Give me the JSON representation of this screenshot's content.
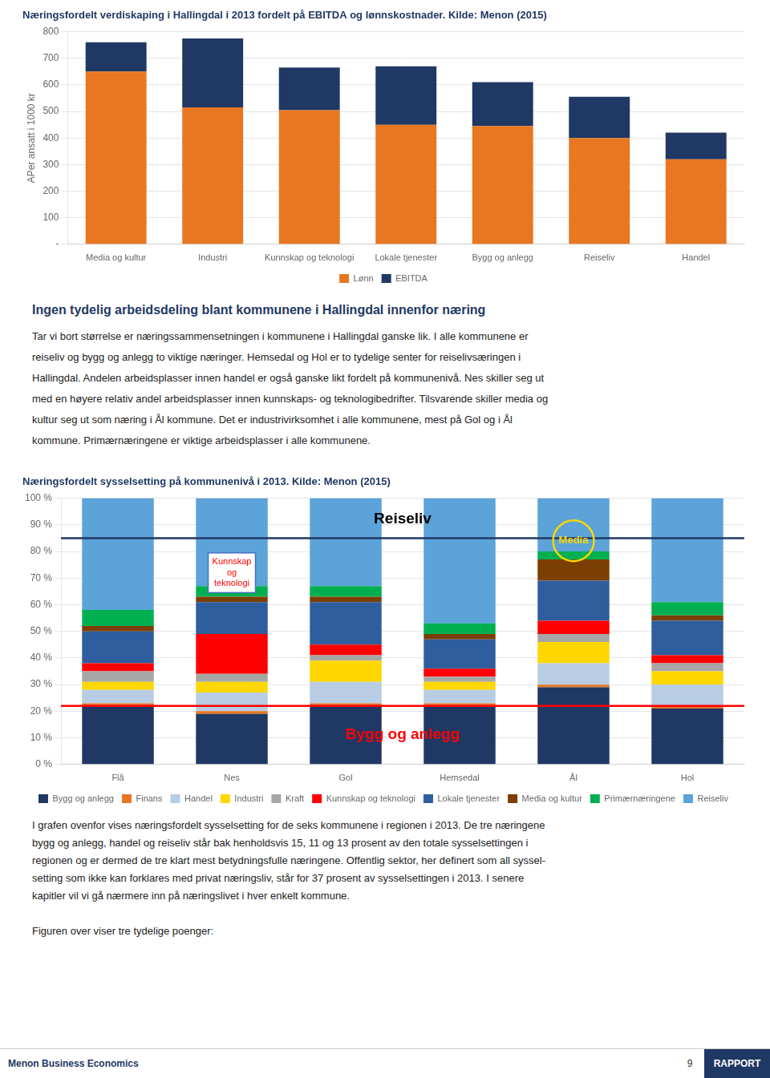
{
  "heading": "Ingen tydelig arbeidsdeling blant kommunene i Hallingdal innenfor næring",
  "paragraphs": [
    "Tar vi bort størrelse er næringssammensetningen i kommunene i Hallingdal ganske lik. I alle kommunene er",
    "reiseliv og bygg og anlegg to viktige næringer. Hemsedal og Hol er to tydelige senter for reiselivsæringen i",
    "Hallingdal. Andelen arbeidsplasser innen handel er også ganske likt fordelt på kommunenivå. Nes skiller seg ut",
    "med en høyere relativ andel arbeidsplasser innen kunnskaps- og teknologibedrifter. Tilsvarende skiller media og",
    "kultur seg ut som næring i Ål kommune. Det er industrivirksomhet i alle kommunene, mest på Gol og i Ål",
    "kommune. Primærnæringene er viktige arbeidsplasser i alle kommunene."
  ],
  "post_paragraphs": [
    "I grafen ovenfor vises næringsfordelt sysselsetting for de seks kommunene i regionen i 2013. De tre næringene",
    "bygg og anlegg, handel og reiseliv står bak henholdsvis 15, 11 og 13 prosent av den totale sysselsettingen i",
    "regionen og er dermed de tre klart mest betydningsfulle næringene. Offentlig sektor, her definert som all syssel-",
    "setting som ikke kan forklares med privat næringsliv, står for 37 prosent av sysselsettingen i 2013. I senere",
    "kapitler vil vi gå nærmere inn på næringslivet i hver enkelt kommune."
  ],
  "post_paragraph2": "Figuren over viser tre tydelige poenger:",
  "footer": {
    "left": "Menon Business Economics",
    "page": "9",
    "right": "RAPPORT"
  },
  "chart_data": [
    {
      "type": "bar",
      "stacked": true,
      "title": "Næringsfordelt verdiskaping i Hallingdal i 2013 fordelt på EBITDA og lønnskostnader. Kilde: Menon (2015)",
      "ylabel": "APer ansatt i 1000 kr",
      "categories": [
        "Media og kultur",
        "Industri",
        "Kunnskap og teknologi",
        "Lokale tjenester",
        "Bygg og anlegg",
        "Reiseliv",
        "Handel"
      ],
      "series": [
        {
          "name": "Lønn",
          "color": "#E87722",
          "values": [
            650,
            515,
            505,
            450,
            445,
            400,
            320
          ]
        },
        {
          "name": "EBITDA",
          "color": "#1F3864",
          "values": [
            110,
            260,
            160,
            220,
            165,
            155,
            100
          ]
        }
      ],
      "ylim": [
        0,
        800
      ],
      "yticks": [
        {
          "value": 0,
          "label": "-"
        },
        100,
        200,
        300,
        400,
        500,
        600,
        700,
        800
      ],
      "grid": true,
      "legend": "bottom"
    },
    {
      "type": "bar",
      "stacked": true,
      "title": "Næringsfordelt sysselsetting på kommunenivå i 2013. Kilde: Menon (2015)",
      "categories": [
        "Flå",
        "Nes",
        "Gol",
        "Hemsedal",
        "Ål",
        "Hol"
      ],
      "series": [
        {
          "name": "Bygg og anlegg",
          "color": "#1F3864",
          "values": [
            22,
            19,
            22,
            22,
            29,
            21
          ]
        },
        {
          "name": "Finans",
          "color": "#E87722",
          "values": [
            1,
            1,
            1,
            1,
            1,
            1
          ]
        },
        {
          "name": "Handel",
          "color": "#B8CCE4",
          "values": [
            5,
            7,
            8,
            5,
            8,
            8
          ]
        },
        {
          "name": "Industri",
          "color": "#FFD700",
          "values": [
            3,
            4,
            8,
            3,
            8,
            5
          ]
        },
        {
          "name": "Kraft",
          "color": "#A6A6A6",
          "values": [
            4,
            3,
            2,
            2,
            3,
            3
          ]
        },
        {
          "name": "Kunnskap og teknologi",
          "color": "#FF0000",
          "values": [
            3,
            15,
            4,
            3,
            5,
            3
          ]
        },
        {
          "name": "Lokale tjenester",
          "color": "#2E5E9E",
          "values": [
            12,
            12,
            16,
            11,
            15,
            13
          ]
        },
        {
          "name": "Media og kultur",
          "color": "#7B3F00",
          "values": [
            2,
            2,
            2,
            2,
            8,
            2
          ]
        },
        {
          "name": "Primærnæringene",
          "color": "#00B050",
          "values": [
            6,
            4,
            4,
            4,
            3,
            5
          ]
        },
        {
          "name": "Reiseliv",
          "color": "#5BA3D9",
          "values": [
            42,
            33,
            33,
            47,
            20,
            39
          ]
        }
      ],
      "ylim": [
        0,
        100
      ],
      "yticks": [
        {
          "value": 0,
          "label": "0 %"
        },
        {
          "value": 10,
          "label": "10 %"
        },
        {
          "value": 20,
          "label": "20 %"
        },
        {
          "value": 30,
          "label": "30 %"
        },
        {
          "value": 40,
          "label": "40 %"
        },
        {
          "value": 50,
          "label": "50 %"
        },
        {
          "value": 60,
          "label": "60 %"
        },
        {
          "value": 70,
          "label": "70 %"
        },
        {
          "value": 80,
          "label": "80 %"
        },
        {
          "value": 90,
          "label": "90 %"
        },
        {
          "value": 100,
          "label": "100 %"
        }
      ],
      "grid": true,
      "legend": "bottom",
      "reference_lines": [
        {
          "value": 85,
          "color": "#1F3864"
        },
        {
          "value": 22,
          "color": "red"
        }
      ],
      "annotations": [
        {
          "text": "Reiseliv",
          "x": 2.5,
          "y": 92,
          "color": "black",
          "marker": "none"
        },
        {
          "text": "Media",
          "x": 4.0,
          "y": 84,
          "color": "#FFD700",
          "marker": "circle",
          "marker_color": "#FFD700"
        },
        {
          "text": "Kunnskap\nog\nteknologi",
          "x": 1.0,
          "y": 72,
          "color": "red",
          "marker": "box",
          "marker_color": "#4472C4"
        },
        {
          "text": "Bygg og anlegg",
          "x": 2.5,
          "y": 11,
          "color": "red",
          "marker": "none"
        }
      ]
    }
  ]
}
